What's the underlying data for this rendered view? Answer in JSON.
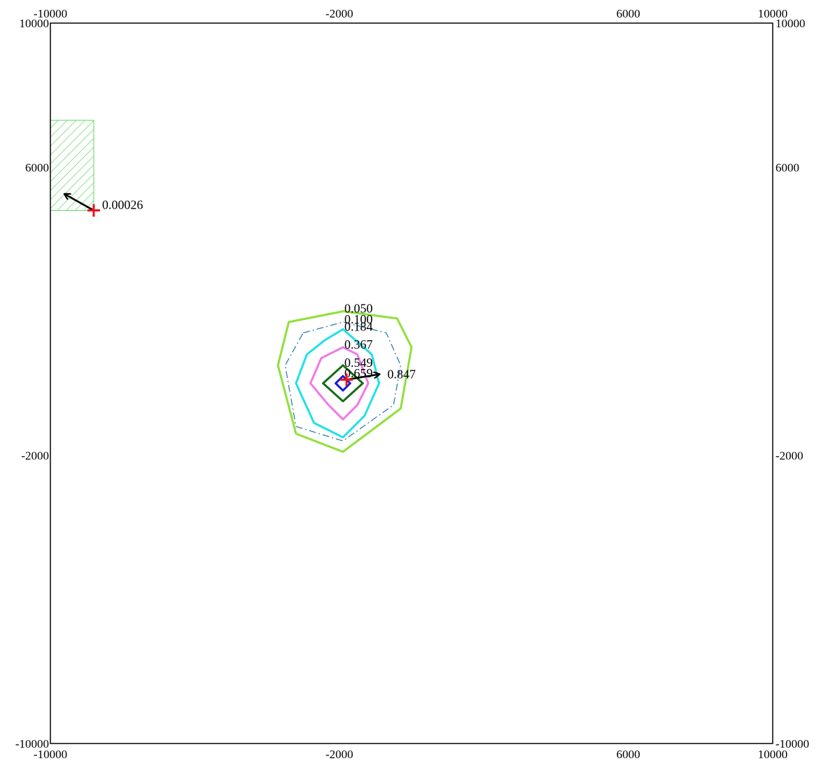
{
  "chart_data": {
    "type": "contour",
    "title": "",
    "xlabel": "",
    "ylabel": "",
    "xlim": [
      -10000,
      10000
    ],
    "ylim": [
      -10000,
      10000
    ],
    "grid": false,
    "x_ticks": [
      -10000,
      -2000,
      6000,
      10000
    ],
    "y_ticks": [
      -10000,
      -2000,
      6000,
      10000
    ],
    "x_tick_labels": [
      "-10000",
      "-2000",
      "6000",
      "10000"
    ],
    "y_tick_labels": [
      "-10000",
      "-2000",
      "6000",
      "10000"
    ],
    "contours": [
      {
        "level_label": "0.050",
        "color": "#8fe03a",
        "style": "solid",
        "points": [
          [
            -3400,
            1700
          ],
          [
            -1900,
            2000
          ],
          [
            -400,
            1800
          ],
          [
            0,
            1000
          ],
          [
            -300,
            -700
          ],
          [
            -1900,
            -1900
          ],
          [
            -3200,
            -1400
          ],
          [
            -3700,
            500
          ]
        ]
      },
      {
        "level_label": "0.100",
        "color": "#2f7fa8",
        "style": "dashdot",
        "points": [
          [
            -3000,
            1400
          ],
          [
            -1900,
            1700
          ],
          [
            -700,
            1400
          ],
          [
            -300,
            500
          ],
          [
            -500,
            -600
          ],
          [
            -1900,
            -1600
          ],
          [
            -3200,
            -1200
          ],
          [
            -3500,
            500
          ]
        ]
      },
      {
        "level_label": "0.184",
        "color": "#22e0e8",
        "style": "solid",
        "points": [
          [
            -2400,
            1200
          ],
          [
            -1900,
            1500
          ],
          [
            -1100,
            800
          ],
          [
            -900,
            0
          ],
          [
            -1300,
            -900
          ],
          [
            -1900,
            -1500
          ],
          [
            -2700,
            -1100
          ],
          [
            -3200,
            0
          ],
          [
            -2900,
            800
          ]
        ]
      },
      {
        "level_label": "0.367",
        "color": "#ef7ae8",
        "style": "solid",
        "points": [
          [
            -1900,
            1000
          ],
          [
            -1500,
            800
          ],
          [
            -1200,
            0
          ],
          [
            -1500,
            -600
          ],
          [
            -1900,
            -1000
          ],
          [
            -2300,
            -600
          ],
          [
            -2800,
            0
          ],
          [
            -2500,
            700
          ]
        ]
      },
      {
        "level_label": "0.549",
        "color": "#146b14",
        "style": "solid",
        "points": [
          [
            -1900,
            500
          ],
          [
            -1350,
            0
          ],
          [
            -1900,
            -500
          ],
          [
            -2450,
            0
          ]
        ]
      },
      {
        "level_label": "0.659",
        "color": "#1a1ad8",
        "style": "solid",
        "points": [
          [
            -1900,
            200
          ],
          [
            -1700,
            0
          ],
          [
            -1900,
            -200
          ],
          [
            -2100,
            0
          ]
        ]
      }
    ],
    "receptors": [
      {
        "label": "0.00026",
        "x": -8800,
        "y": 4800,
        "vector": [
          -800,
          450
        ]
      },
      {
        "label": "0.847",
        "x": -1800,
        "y": 100,
        "vector": [
          900,
          150
        ]
      }
    ],
    "source_area": {
      "x_range": [
        -10000,
        -8800
      ],
      "y_range": [
        4800,
        7300
      ],
      "color": "#5fd85f",
      "fill": "diagonal-hatch"
    },
    "colors": {
      "frame": "#000000",
      "receptor_marker": "#e8141a",
      "vector": "#000000"
    }
  }
}
